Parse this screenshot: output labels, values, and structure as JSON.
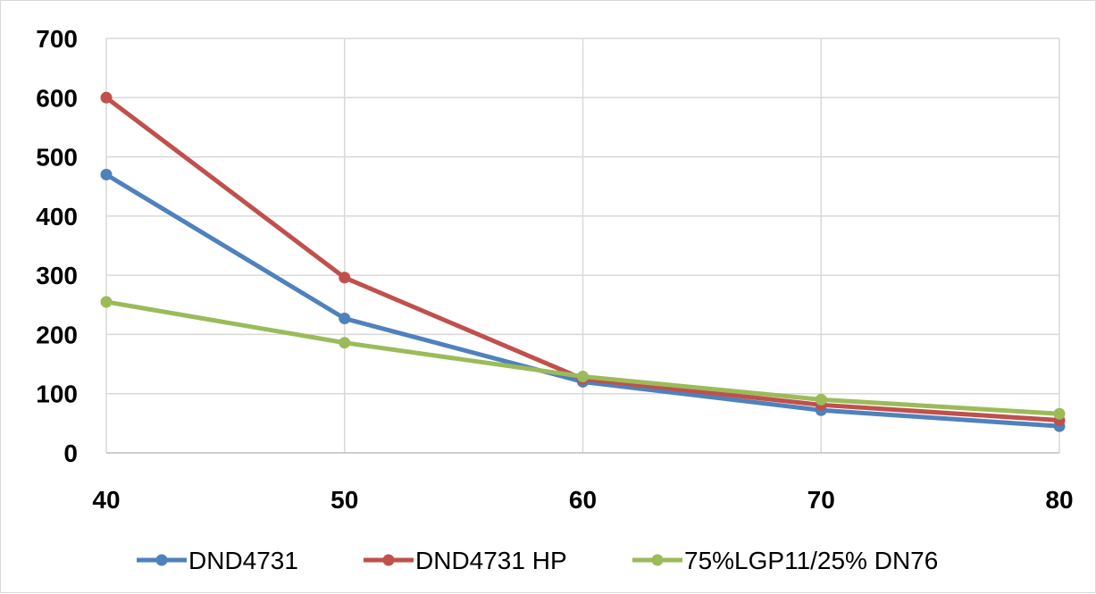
{
  "chart_data": {
    "type": "line",
    "title": "",
    "xlabel": "",
    "ylabel": "",
    "x": [
      40,
      50,
      60,
      70,
      80
    ],
    "xlim": [
      40,
      80
    ],
    "ylim": [
      0,
      700
    ],
    "x_ticks": [
      "40",
      "50",
      "60",
      "70",
      "80"
    ],
    "y_ticks": [
      "0",
      "100",
      "200",
      "300",
      "400",
      "500",
      "600",
      "700"
    ],
    "grid": true,
    "legend_position": "bottom",
    "series": [
      {
        "name": "DND4731",
        "color": "#4f81bd",
        "values": [
          470,
          227,
          120,
          72,
          45
        ]
      },
      {
        "name": "DND4731 HP",
        "color": "#c0504d",
        "values": [
          600,
          296,
          125,
          81,
          55
        ]
      },
      {
        "name": "75%LGP11/25% DN76",
        "color": "#9bbb59",
        "values": [
          255,
          186,
          129,
          90,
          66
        ]
      }
    ]
  }
}
